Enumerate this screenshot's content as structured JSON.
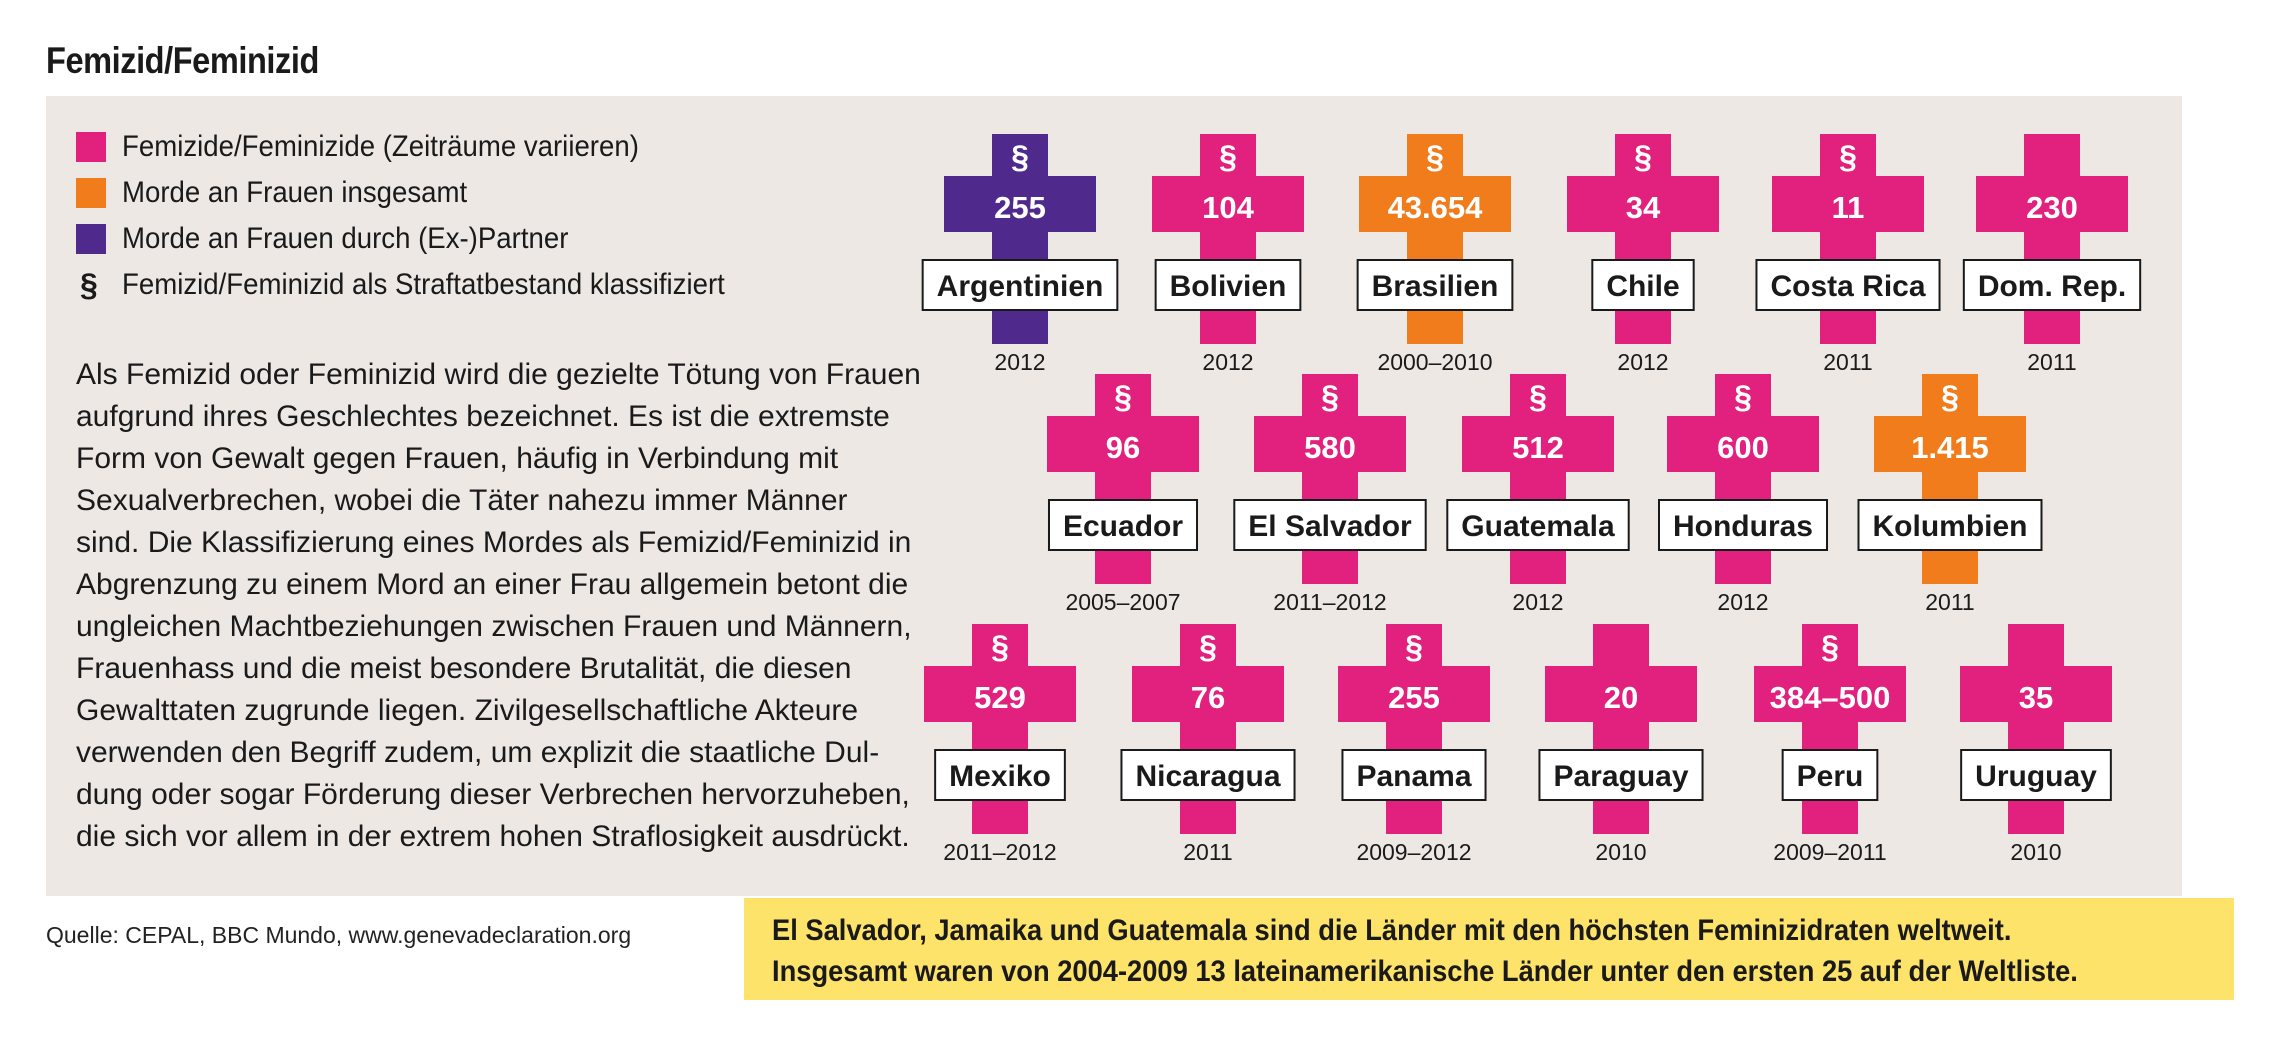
{
  "title": "Femizid/Feminizid",
  "legend": [
    {
      "label": "Femizide/Feminizide (Zeiträume variieren)",
      "color": "#e2207d",
      "kind": "swatch"
    },
    {
      "label": "Morde an Frauen insgesamt",
      "color": "#f07c1c",
      "kind": "swatch"
    },
    {
      "label": "Morde an Frauen durch (Ex-)Partner",
      "color": "#4f2a8c",
      "kind": "swatch"
    },
    {
      "label": "Femizid/Feminizid als Straftatbestand klassifiziert",
      "symbol": "§",
      "kind": "symbol"
    }
  ],
  "description": [
    "Als Femizid oder Feminizid wird die gezielte Tötung von Frauen",
    "aufgrund ihres Geschlechtes bezeichnet. Es ist die extremste",
    "Form von Gewalt gegen Frauen, häufig in Verbindung mit",
    "Sexualverbrechen, wobei die Täter nahezu immer Männer",
    "sind. Die Klassifizierung eines Mordes als Femizid/Feminizid in",
    "Abgrenzung zu einem Mord an einer Frau allgemein betont die",
    "ungleichen Machtbeziehungen zwischen Frauen und Männern,",
    "Frauenhass und die meist besondere Brutalität, die diesen",
    "Gewalttaten zugrunde liegen. Zivilgesellschaftliche Akteure",
    "verwenden den Begriff zudem, um explizit die staatliche Dul-",
    "dung oder sogar Förderung dieser Verbrechen hervorzuheben,",
    "die sich vor allem in der extrem hohen Straflosigkeit ausdrückt."
  ],
  "source": "Quelle: CEPAL, BBC Mundo, www.genevadeclaration.org",
  "callout": [
    "El Salvador, Jamaika und Guatemala sind die Länder mit den höchsten Feminizidraten weltweit.",
    "Insgesamt waren von 2004-2009 13 lateinamerikanische Länder unter den ersten 25 auf der Weltliste."
  ],
  "colors": {
    "femizid": "#e2207d",
    "gesamt": "#f07c1c",
    "partner": "#4f2a8c"
  },
  "chart_data": {
    "type": "table",
    "title": "Femizid/Feminizid",
    "countries": [
      {
        "name": "Argentinien",
        "value": "255",
        "period": "2012",
        "category": "partner",
        "law": true
      },
      {
        "name": "Bolivien",
        "value": "104",
        "period": "2012",
        "category": "femizid",
        "law": true
      },
      {
        "name": "Brasilien",
        "value": "43.654",
        "period": "2000–2010",
        "category": "gesamt",
        "law": true
      },
      {
        "name": "Chile",
        "value": "34",
        "period": "2012",
        "category": "femizid",
        "law": true
      },
      {
        "name": "Costa Rica",
        "value": "11",
        "period": "2011",
        "category": "femizid",
        "law": true
      },
      {
        "name": "Dom. Rep.",
        "value": "230",
        "period": "2011",
        "category": "femizid",
        "law": false
      },
      {
        "name": "Ecuador",
        "value": "96",
        "period": "2005–2007",
        "category": "femizid",
        "law": true
      },
      {
        "name": "El Salvador",
        "value": "580",
        "period": "2011–2012",
        "category": "femizid",
        "law": true
      },
      {
        "name": "Guatemala",
        "value": "512",
        "period": "2012",
        "category": "femizid",
        "law": true
      },
      {
        "name": "Honduras",
        "value": "600",
        "period": "2012",
        "category": "femizid",
        "law": true
      },
      {
        "name": "Kolumbien",
        "value": "1.415",
        "period": "2011",
        "category": "gesamt",
        "law": true
      },
      {
        "name": "Mexiko",
        "value": "529",
        "period": "2011–2012",
        "category": "femizid",
        "law": true
      },
      {
        "name": "Nicaragua",
        "value": "76",
        "period": "2011",
        "category": "femizid",
        "law": true
      },
      {
        "name": "Panama",
        "value": "255",
        "period": "2009–2012",
        "category": "femizid",
        "law": true
      },
      {
        "name": "Paraguay",
        "value": "20",
        "period": "2010",
        "category": "femizid",
        "law": false
      },
      {
        "name": "Peru",
        "value": "384–500",
        "period": "2009–2011",
        "category": "femizid",
        "law": true
      },
      {
        "name": "Uruguay",
        "value": "35",
        "period": "2010",
        "category": "femizid",
        "law": false
      }
    ]
  }
}
